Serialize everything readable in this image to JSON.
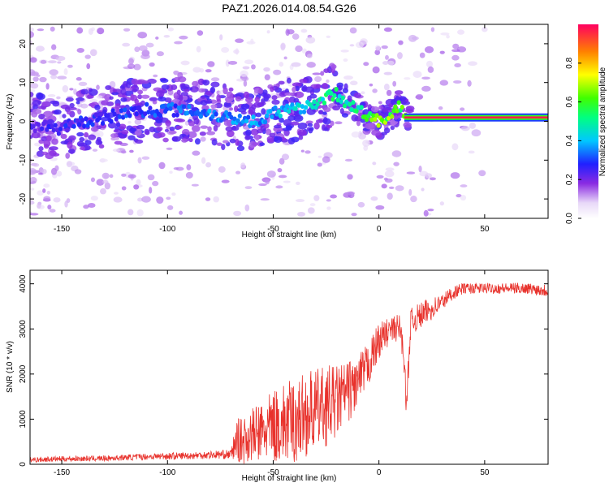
{
  "title": "PAZ1.2026.014.08.54.G26",
  "chart_data": [
    {
      "type": "heatmap",
      "title": "PAZ1.2026.014.08.54.G26",
      "xlabel": "Height of straight line (km)",
      "ylabel": "Frequency (Hz)",
      "xlim": [
        -165,
        80
      ],
      "ylim": [
        -25,
        25
      ],
      "xticks": [
        "-150",
        "-100",
        "-50",
        "0",
        "50"
      ],
      "yticks": [
        "-20",
        "-10",
        "0",
        "10",
        "20"
      ],
      "xtick_values": [
        -150,
        -100,
        -50,
        0,
        50
      ],
      "ytick_values": [
        -20,
        -10,
        0,
        10,
        20
      ],
      "colorbar": {
        "label": "Normalized spectral amplitude",
        "range": [
          0,
          1
        ],
        "ticks": [
          "0.0",
          "0.2",
          "0.4",
          "0.6",
          "0.8"
        ],
        "tick_values": [
          0,
          0.2,
          0.4,
          0.6,
          0.8
        ],
        "colormap": "rainbow"
      },
      "ridge": {
        "x": [
          -165,
          -150,
          -140,
          -130,
          -120,
          -110,
          -100,
          -90,
          -80,
          -70,
          -60,
          -50,
          -40,
          -30,
          -25,
          -20,
          -15,
          -10,
          -5,
          0,
          5,
          8,
          10,
          12,
          15,
          20,
          30,
          40,
          50,
          60,
          70,
          80
        ],
        "freq": [
          -1,
          -2,
          0,
          1,
          2,
          3,
          3,
          3,
          2,
          1,
          0,
          2,
          3,
          5,
          6,
          7,
          5,
          3,
          1,
          0,
          1,
          3,
          4,
          2,
          1,
          1,
          1,
          1,
          1,
          1,
          1,
          1
        ],
        "amplitude": [
          0.25,
          0.28,
          0.3,
          0.3,
          0.32,
          0.32,
          0.35,
          0.35,
          0.38,
          0.4,
          0.4,
          0.42,
          0.45,
          0.5,
          0.55,
          0.55,
          0.5,
          0.55,
          0.65,
          0.75,
          0.72,
          0.65,
          0.6,
          0.75,
          0.8,
          0.9,
          0.95,
          0.95,
          0.95,
          0.95,
          0.95,
          0.95
        ]
      }
    },
    {
      "type": "line",
      "xlabel": "Height of straight line (km)",
      "ylabel": "SNR (10 * v/v)",
      "xlim": [
        -165,
        80
      ],
      "ylim": [
        0,
        4300
      ],
      "xticks": [
        "-150",
        "-100",
        "-50",
        "0",
        "50"
      ],
      "yticks": [
        "0",
        "1000",
        "2000",
        "3000",
        "4000"
      ],
      "xtick_values": [
        -150,
        -100,
        -50,
        0,
        50
      ],
      "ytick_values": [
        0,
        1000,
        2000,
        3000,
        4000
      ],
      "series": [
        {
          "name": "SNR",
          "color": "#e8322c",
          "x": [
            -165,
            -150,
            -130,
            -110,
            -100,
            -90,
            -80,
            -70,
            -67,
            -65,
            -60,
            -55,
            -50,
            -45,
            -40,
            -35,
            -30,
            -25,
            -20,
            -15,
            -10,
            -5,
            0,
            5,
            10,
            12,
            13,
            15,
            20,
            25,
            30,
            35,
            40,
            50,
            60,
            70,
            80
          ],
          "values": [
            100,
            120,
            130,
            170,
            180,
            190,
            210,
            220,
            550,
            500,
            650,
            700,
            850,
            900,
            950,
            1100,
            1200,
            1300,
            1400,
            1600,
            1800,
            2200,
            2750,
            2950,
            3050,
            2300,
            1200,
            3150,
            3300,
            3450,
            3600,
            3800,
            3900,
            3900,
            3900,
            3900,
            3850
          ],
          "noise_amplitude": [
            60,
            60,
            60,
            70,
            80,
            80,
            90,
            100,
            500,
            500,
            600,
            700,
            800,
            900,
            950,
            950,
            900,
            900,
            800,
            700,
            600,
            500,
            400,
            300,
            300,
            300,
            300,
            300,
            300,
            250,
            200,
            150,
            120,
            120,
            120,
            120,
            150
          ]
        }
      ]
    }
  ]
}
